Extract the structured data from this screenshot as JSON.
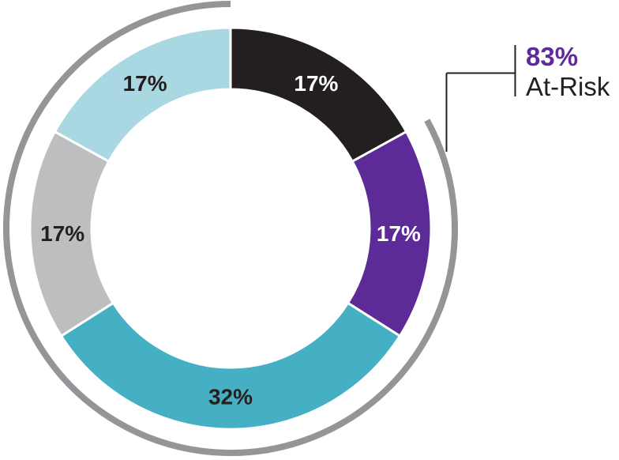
{
  "chart_data": {
    "type": "donut",
    "title": "",
    "background_color": "#ffffff",
    "direction": "clockwise",
    "start_angle_deg": 0,
    "legend_position": "none",
    "separator_color": "#ffffff",
    "segments": [
      {
        "name": "black-segment",
        "label": "17%",
        "value": 17,
        "color": "#231f20",
        "label_color": "#ffffff"
      },
      {
        "name": "purple-segment",
        "label": "17%",
        "value": 17,
        "color": "#5c2b97",
        "label_color": "#ffffff"
      },
      {
        "name": "teal-segment",
        "label": "32%",
        "value": 32,
        "color": "#45b0c4",
        "label_color": "#231f20"
      },
      {
        "name": "gray-segment",
        "label": "17%",
        "value": 17,
        "color": "#bcbec0",
        "label_color": "#231f20"
      },
      {
        "name": "light-blue-segment",
        "label": "17%",
        "value": 17,
        "color": "#a9d8e3",
        "label_color": "#231f20"
      }
    ],
    "highlight_arc": {
      "coverage_percent": 83,
      "start_angle_deg": 61.2,
      "end_angle_deg": 360,
      "color": "#939598"
    },
    "callout": {
      "value": "83%",
      "label": "At-Risk",
      "value_color": "#5f2b9a",
      "label_color": "#231f20",
      "line_color": "#231f20"
    }
  }
}
